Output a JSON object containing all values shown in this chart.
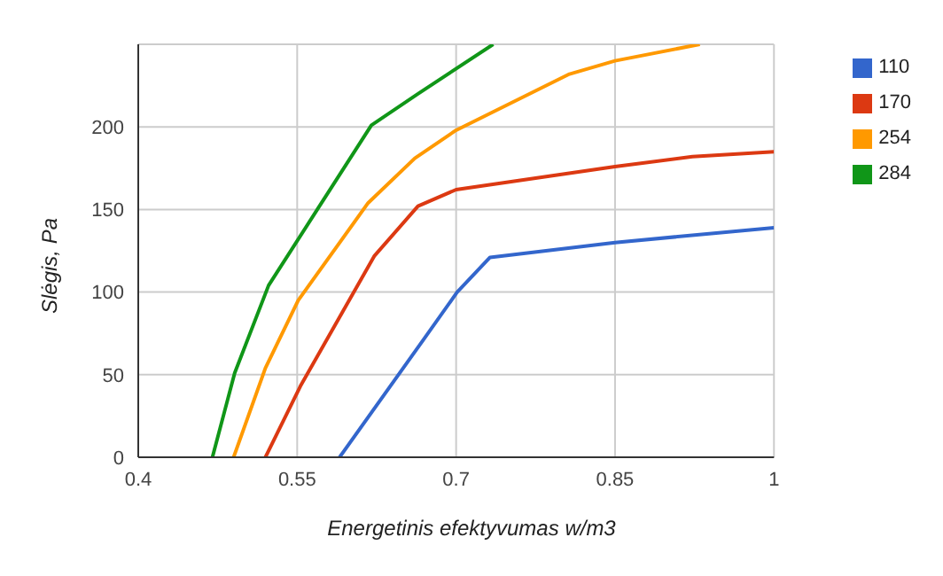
{
  "chart_data": {
    "type": "line",
    "xlabel": "Energetinis efektyvumas w/m3",
    "ylabel": "Slėgis, Pa",
    "xlim": [
      0.4,
      1
    ],
    "xticks": [
      0.4,
      0.55,
      0.7,
      0.85,
      1
    ],
    "ylim": [
      0,
      250
    ],
    "yticks": [
      0,
      50,
      100,
      150,
      200
    ],
    "grid": true,
    "legend": "top right",
    "marker": "none",
    "line_style": "solid",
    "series": [
      {
        "name": "110",
        "color": "#3366cc",
        "x": [
          0.59,
          0.669,
          0.701,
          0.732,
          0.85,
          1
        ],
        "values": [
          0,
          71,
          100,
          121,
          130,
          139
        ]
      },
      {
        "name": "170",
        "color": "#dc3912",
        "x": [
          0.52,
          0.553,
          0.623,
          0.664,
          0.7,
          0.85,
          0.923,
          1
        ],
        "values": [
          0,
          43,
          122,
          152,
          162,
          176,
          182,
          185
        ]
      },
      {
        "name": "254",
        "color": "#ff9900",
        "x": [
          0.49,
          0.52,
          0.551,
          0.617,
          0.661,
          0.7,
          0.807,
          0.85,
          0.93
        ],
        "values": [
          0,
          54,
          95,
          154,
          181,
          198,
          232,
          240,
          250
        ]
      },
      {
        "name": "284",
        "color": "#109618",
        "x": [
          0.47,
          0.491,
          0.523,
          0.569,
          0.62,
          0.664,
          0.735
        ],
        "values": [
          0,
          51,
          104,
          150,
          201,
          220,
          250
        ]
      }
    ]
  }
}
